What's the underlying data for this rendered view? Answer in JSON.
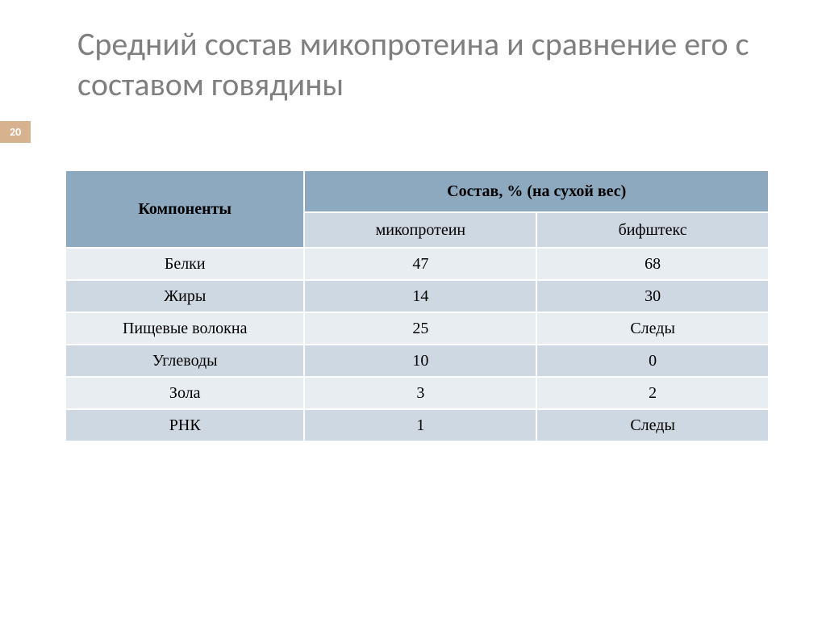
{
  "slide": {
    "title": "Средний состав микопротеина и сравнение его с составом говядины",
    "page_number": "20"
  },
  "table": {
    "type": "table",
    "header": {
      "col1": "Компоненты",
      "col2_span": "Состав, % (на сухой вес)",
      "sub1": "микопротеин",
      "sub2": "бифштекс"
    },
    "rows": [
      {
        "label": "Белки",
        "v1": "47",
        "v2": "68"
      },
      {
        "label": "Жиры",
        "v1": "14",
        "v2": "30"
      },
      {
        "label": "Пищевые волокна",
        "v1": "25",
        "v2": "Следы"
      },
      {
        "label": "Углеводы",
        "v1": "10",
        "v2": "0"
      },
      {
        "label": "Зола",
        "v1": "3",
        "v2": "2"
      },
      {
        "label": "РНК",
        "v1": "1",
        "v2": "Следы"
      }
    ],
    "styling": {
      "header_bg": "#8da9bf",
      "subheader_bg": "#cdd8e2",
      "row_odd_bg": "#e8edf2",
      "row_even_bg": "#cdd8e2",
      "border_color": "#ffffff",
      "font_family": "Times New Roman",
      "header_fontsize": 20,
      "cell_fontsize": 20,
      "col_widths_pct": [
        34,
        33,
        33
      ]
    }
  },
  "colors": {
    "title_color": "#7f7f7f",
    "badge_bg": "#d6b28e",
    "badge_text": "#ffffff",
    "background": "#ffffff"
  },
  "typography": {
    "title_fontsize": 40,
    "title_fontweight": 400,
    "badge_fontsize": 14
  }
}
